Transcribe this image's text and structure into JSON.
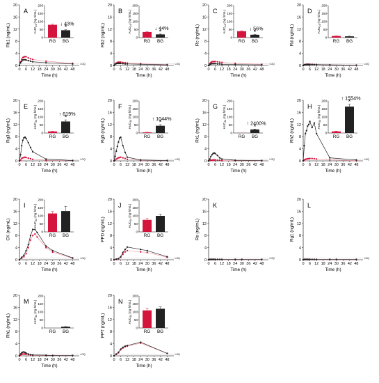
{
  "figure": {
    "x_ticks": [
      0,
      6,
      12,
      18,
      24,
      30,
      36,
      42,
      48
    ],
    "y_ticks": [
      0,
      4,
      8,
      12,
      16,
      20
    ],
    "x_label": "Time (h)",
    "loq_label": "LOQ",
    "inset_ticks": [
      0,
      50,
      100,
      150,
      200
    ],
    "inset_label": "AUC",
    "inset_sub": "24",
    "inset_unit": "(ng·h/mL)",
    "groups": [
      "RG",
      "BG"
    ],
    "colors": {
      "RG": "#d4143c",
      "BG": "#222222",
      "RG_line": "#f29aa8"
    }
  },
  "chart_data": [
    {
      "type": "line",
      "panel": "A",
      "ylabel": "Rb1 (ng/mL)",
      "xlim": [
        0,
        54
      ],
      "ylim": [
        0,
        20
      ],
      "x": [
        0,
        1,
        2,
        3,
        4,
        5,
        6,
        8,
        10,
        12,
        24,
        48
      ],
      "series": [
        {
          "name": "RG",
          "values": [
            0,
            1.2,
            2.0,
            2.6,
            2.8,
            2.9,
            2.9,
            2.5,
            2.2,
            2.0,
            1.4,
            0.7
          ]
        },
        {
          "name": "BG",
          "values": [
            0,
            0.9,
            1.4,
            1.8,
            1.9,
            1.9,
            1.8,
            1.6,
            1.4,
            1.2,
            0.9,
            0.5
          ]
        }
      ],
      "inset": {
        "type": "bar",
        "ylim": [
          0,
          200
        ],
        "categories": [
          "RG",
          "BG"
        ],
        "values": [
          80,
          46
        ],
        "errors": [
          4,
          3
        ],
        "change": "↓ 43%",
        "significance": "*"
      }
    },
    {
      "type": "line",
      "panel": "B",
      "ylabel": "Rb2 (ng/mL)",
      "xlim": [
        0,
        54
      ],
      "ylim": [
        0,
        20
      ],
      "x": [
        0,
        1,
        2,
        3,
        4,
        5,
        6,
        8,
        10,
        12,
        24,
        48
      ],
      "series": [
        {
          "name": "RG",
          "values": [
            0,
            0.5,
            0.8,
            1.0,
            1.1,
            1.1,
            1.1,
            1.0,
            0.9,
            0.8,
            0.6,
            0.3
          ]
        },
        {
          "name": "BG",
          "values": [
            0,
            0.4,
            0.6,
            0.7,
            0.7,
            0.7,
            0.7,
            0.6,
            0.5,
            0.5,
            0.4,
            0.2
          ]
        }
      ],
      "inset": {
        "type": "bar",
        "ylim": [
          0,
          200
        ],
        "categories": [
          "RG",
          "BG"
        ],
        "values": [
          35,
          20
        ],
        "errors": [
          3,
          2
        ],
        "change": "↓ 44%",
        "significance": "*"
      }
    },
    {
      "type": "line",
      "panel": "C",
      "ylabel": "Rc (ng/mL)",
      "xlim": [
        0,
        54
      ],
      "ylim": [
        0,
        20
      ],
      "x": [
        0,
        1,
        2,
        3,
        4,
        5,
        6,
        8,
        10,
        12,
        24,
        48
      ],
      "series": [
        {
          "name": "RG",
          "values": [
            0,
            0.6,
            1.0,
            1.2,
            1.3,
            1.3,
            1.3,
            1.2,
            1.1,
            1.0,
            0.7,
            0.4
          ]
        },
        {
          "name": "BG",
          "values": [
            0,
            0.3,
            0.5,
            0.6,
            0.6,
            0.6,
            0.6,
            0.5,
            0.5,
            0.4,
            0.3,
            0.2
          ]
        }
      ],
      "inset": {
        "type": "bar",
        "ylim": [
          0,
          200
        ],
        "categories": [
          "RG",
          "BG"
        ],
        "values": [
          40,
          18
        ],
        "errors": [
          3,
          2
        ],
        "change": "↓ 56%",
        "significance": "*"
      }
    },
    {
      "type": "line",
      "panel": "D",
      "ylabel": "Rd (ng/mL)",
      "xlim": [
        0,
        54
      ],
      "ylim": [
        0,
        20
      ],
      "x": [
        0,
        1,
        2,
        3,
        4,
        5,
        6,
        8,
        10,
        12,
        24,
        48
      ],
      "series": [
        {
          "name": "RG",
          "values": [
            0,
            0.2,
            0.3,
            0.4,
            0.4,
            0.4,
            0.4,
            0.4,
            0.3,
            0.3,
            0.2,
            0.1
          ]
        },
        {
          "name": "BG",
          "values": [
            0,
            0.2,
            0.3,
            0.3,
            0.3,
            0.3,
            0.3,
            0.3,
            0.3,
            0.3,
            0.2,
            0.1
          ]
        }
      ],
      "inset": {
        "type": "bar",
        "ylim": [
          0,
          200
        ],
        "categories": [
          "RG",
          "BG"
        ],
        "values": [
          10,
          8
        ],
        "errors": [
          1,
          1
        ],
        "change": "",
        "significance": ""
      }
    },
    {
      "type": "line",
      "panel": "E",
      "ylabel": "Rg3 (ng/mL)",
      "xlim": [
        0,
        54
      ],
      "ylim": [
        0,
        20
      ],
      "x": [
        0,
        1,
        2,
        3,
        4,
        5,
        6,
        8,
        10,
        12,
        24,
        48
      ],
      "series": [
        {
          "name": "RG",
          "values": [
            0,
            0.3,
            0.8,
            1.0,
            1.1,
            1.2,
            1.1,
            0.9,
            0.7,
            0.5,
            0.2,
            0.1
          ]
        },
        {
          "name": "BG",
          "values": [
            0,
            2.0,
            5.0,
            6.8,
            7.6,
            7.8,
            7.4,
            6.0,
            4.4,
            3.0,
            0.6,
            0.1
          ]
        }
      ],
      "inset": {
        "type": "bar",
        "ylim": [
          0,
          200
        ],
        "categories": [
          "RG",
          "BG"
        ],
        "values": [
          10,
          72
        ],
        "errors": [
          1,
          10
        ],
        "change": "↑ 619%",
        "significance": "*"
      }
    },
    {
      "type": "line",
      "panel": "F",
      "ylabel": "Rg5 (ng/mL)",
      "xlim": [
        0,
        54
      ],
      "ylim": [
        0,
        20
      ],
      "x": [
        0,
        1,
        2,
        3,
        4,
        5,
        6,
        8,
        10,
        12,
        24,
        48
      ],
      "series": [
        {
          "name": "RG",
          "values": [
            0,
            0.2,
            0.6,
            0.8,
            1.0,
            1.1,
            1.2,
            1.0,
            0.8,
            0.5,
            0.2,
            0.1
          ]
        },
        {
          "name": "BG",
          "values": [
            0,
            1.5,
            3.2,
            4.8,
            6.2,
            7.5,
            7.8,
            5.0,
            2.8,
            1.2,
            0.3,
            0.1
          ]
        }
      ],
      "inset": {
        "type": "bar",
        "ylim": [
          0,
          200
        ],
        "categories": [
          "RG",
          "BG"
        ],
        "values": [
          4,
          45
        ],
        "errors": [
          1,
          7
        ],
        "change": "↑ 1044%",
        "significance": "*"
      }
    },
    {
      "type": "line",
      "panel": "G",
      "ylabel": "Rk1 (ng/mL)",
      "xlim": [
        0,
        54
      ],
      "ylim": [
        0,
        20
      ],
      "x": [
        0,
        1,
        2,
        3,
        4,
        5,
        6,
        8,
        10,
        12,
        24,
        48
      ],
      "series": [
        {
          "name": "RG",
          "values": [
            0,
            0.1,
            0.2,
            0.2,
            0.3,
            0.3,
            0.3,
            0.2,
            0.2,
            0.1,
            0.1,
            0.0
          ]
        },
        {
          "name": "BG",
          "values": [
            0,
            0.6,
            1.4,
            2.0,
            2.4,
            2.6,
            2.4,
            1.8,
            1.0,
            0.6,
            0.2,
            0.1
          ]
        }
      ],
      "inset": {
        "type": "bar",
        "ylim": [
          0,
          200
        ],
        "categories": [
          "RG",
          "BG"
        ],
        "values": [
          1,
          22
        ],
        "errors": [
          0.5,
          3
        ],
        "change": "↑ 2400%",
        "significance": "*"
      }
    },
    {
      "type": "line",
      "panel": "H",
      "ylabel": "Rh2 (ng/mL)",
      "xlim": [
        0,
        54
      ],
      "ylim": [
        0,
        20
      ],
      "x": [
        0,
        1,
        2,
        3,
        4,
        5,
        6,
        8,
        10,
        12,
        24,
        48
      ],
      "series": [
        {
          "name": "RG",
          "values": [
            0,
            0.3,
            0.5,
            0.6,
            0.7,
            0.7,
            0.8,
            0.8,
            0.7,
            0.6,
            0.3,
            0.1
          ]
        },
        {
          "name": "BG",
          "values": [
            0,
            5.0,
            9.0,
            10.0,
            11.5,
            12.0,
            13.0,
            11.0,
            12.5,
            9.0,
            1.0,
            0.3
          ]
        }
      ],
      "inset": {
        "type": "bar",
        "ylim": [
          0,
          200
        ],
        "categories": [
          "RG",
          "BG"
        ],
        "values": [
          10,
          165
        ],
        "errors": [
          2,
          15
        ],
        "change": "↑ 1554%",
        "significance": "*"
      }
    },
    {
      "type": "line",
      "panel": "I",
      "ylabel": "CK (ng/mL)",
      "xlim": [
        0,
        54
      ],
      "ylim": [
        0,
        20
      ],
      "x": [
        0,
        2,
        4,
        6,
        8,
        10,
        12,
        14,
        16,
        24,
        30,
        48
      ],
      "series": [
        {
          "name": "RG",
          "values": [
            0,
            0.5,
            1.0,
            2.0,
            4.0,
            6.5,
            8.0,
            8.5,
            7.5,
            4.0,
            2.5,
            0.5
          ]
        },
        {
          "name": "BG",
          "values": [
            0,
            0.8,
            1.5,
            3.0,
            5.0,
            8.0,
            10.0,
            10.0,
            9.0,
            4.5,
            3.0,
            0.6
          ]
        }
      ],
      "inset": {
        "type": "bar",
        "ylim": [
          0,
          200
        ],
        "categories": [
          "RG",
          "BG"
        ],
        "values": [
          115,
          130
        ],
        "errors": [
          12,
          30
        ],
        "change": "",
        "significance": ""
      }
    },
    {
      "type": "line",
      "panel": "J",
      "ylabel": "PPD (ng/mL)",
      "xlim": [
        0,
        54
      ],
      "ylim": [
        0,
        20
      ],
      "x": [
        0,
        2,
        4,
        6,
        8,
        10,
        12,
        24,
        30,
        48
      ],
      "series": [
        {
          "name": "RG",
          "values": [
            0,
            0.1,
            0.3,
            0.8,
            1.8,
            2.6,
            3.0,
            2.6,
            2.4,
            0.8
          ]
        },
        {
          "name": "BG",
          "values": [
            0,
            0.2,
            0.4,
            1.0,
            2.4,
            3.4,
            4.2,
            3.4,
            3.0,
            1.0
          ]
        }
      ],
      "inset": {
        "type": "bar",
        "ylim": [
          0,
          200
        ],
        "categories": [
          "RG",
          "BG"
        ],
        "values": [
          75,
          100
        ],
        "errors": [
          8,
          10
        ],
        "change": "",
        "significance": ""
      }
    },
    {
      "type": "line",
      "panel": "K",
      "ylabel": "Re (ng/mL)",
      "xlim": [
        0,
        54
      ],
      "ylim": [
        0,
        20
      ],
      "x": [
        0,
        1,
        2,
        3,
        4,
        5,
        6,
        8,
        10,
        12,
        24,
        30,
        48
      ],
      "series": [
        {
          "name": "RG",
          "values": [
            0,
            0.1,
            0.1,
            0.1,
            0.1,
            0.1,
            0.1,
            0.1,
            0.1,
            0.1,
            0.1,
            0.1,
            0.1
          ]
        },
        {
          "name": "BG",
          "values": [
            0,
            0.1,
            0.1,
            0.1,
            0.1,
            0.1,
            0.1,
            0.1,
            0.1,
            0.1,
            0.1,
            0.1,
            0.1
          ]
        }
      ]
    },
    {
      "type": "line",
      "panel": "L",
      "ylabel": "Rg1 (ng/mL)",
      "xlim": [
        0,
        54
      ],
      "ylim": [
        0,
        20
      ],
      "x": [
        0,
        1,
        2,
        3,
        4,
        5,
        6,
        8,
        10,
        12,
        24,
        30,
        48
      ],
      "series": [
        {
          "name": "RG",
          "values": [
            0,
            0.1,
            0.1,
            0.1,
            0.1,
            0.1,
            0.1,
            0.1,
            0.1,
            0.1,
            0.1,
            0.1,
            0.1
          ]
        },
        {
          "name": "BG",
          "values": [
            0,
            0.1,
            0.1,
            0.1,
            0.1,
            0.1,
            0.1,
            0.1,
            0.1,
            0.1,
            0.1,
            0.1,
            0.1
          ]
        }
      ]
    },
    {
      "type": "line",
      "panel": "M",
      "ylabel": "Rh1 (ng/mL)",
      "xlim": [
        0,
        54
      ],
      "ylim": [
        0,
        20
      ],
      "x": [
        0,
        1,
        2,
        3,
        4,
        5,
        6,
        8,
        10,
        12,
        24,
        30,
        48
      ],
      "series": [
        {
          "name": "RG",
          "values": [
            0,
            0.3,
            0.5,
            0.6,
            0.6,
            0.6,
            0.5,
            0.4,
            0.3,
            0.2,
            0.1,
            0.1,
            0.1
          ]
        },
        {
          "name": "BG",
          "values": [
            0,
            0.6,
            1.0,
            1.2,
            1.3,
            1.1,
            0.9,
            0.6,
            0.4,
            0.3,
            0.2,
            0.1,
            0.1
          ]
        }
      ],
      "inset": {
        "type": "bar",
        "ylim": [
          0,
          200
        ],
        "categories": [
          "RG",
          "BG"
        ],
        "values": [
          0,
          8
        ],
        "errors": [
          0,
          1
        ],
        "change": "",
        "significance": ""
      }
    },
    {
      "type": "line",
      "panel": "N",
      "ylabel": "PPT (ng/mL)",
      "xlim": [
        0,
        54
      ],
      "ylim": [
        0,
        20
      ],
      "x": [
        0,
        2,
        4,
        6,
        8,
        10,
        12,
        24,
        48
      ],
      "series": [
        {
          "name": "RG",
          "values": [
            0,
            0.5,
            1.0,
            2.0,
            2.6,
            3.0,
            3.2,
            4.2,
            0.8
          ]
        },
        {
          "name": "BG",
          "values": [
            0,
            0.6,
            1.2,
            2.2,
            2.8,
            3.2,
            3.4,
            4.5,
            0.8
          ]
        }
      ],
      "inset": {
        "type": "bar",
        "ylim": [
          0,
          200
        ],
        "categories": [
          "RG",
          "BG"
        ],
        "values": [
          110,
          120
        ],
        "errors": [
          15,
          12
        ],
        "change": "",
        "significance": ""
      }
    }
  ]
}
